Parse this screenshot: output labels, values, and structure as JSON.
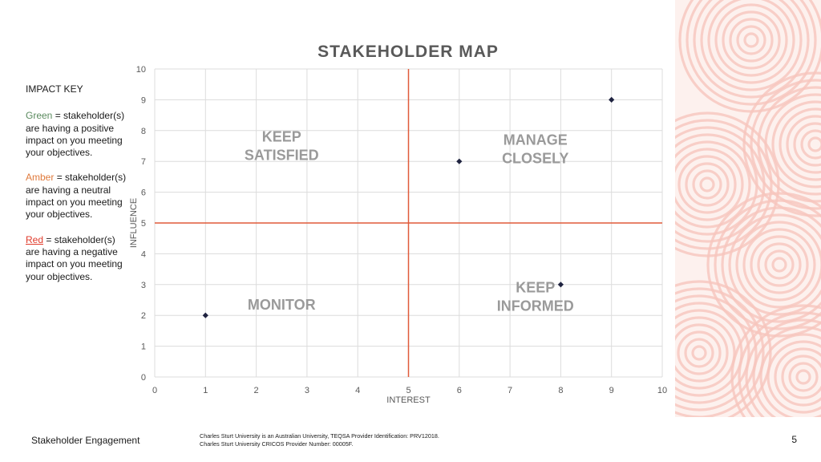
{
  "impact_key": {
    "title": "IMPACT KEY",
    "items": [
      {
        "color_word": "Green",
        "color": "#5a8a5e",
        "text": "= stakeholder(s) are having a positive impact on you meeting your objectives."
      },
      {
        "color_word": "Amber",
        "color": "#e07a3c",
        "text": "= stakeholder(s) are having a neutral impact on you meeting your objectives."
      },
      {
        "color_word": "Red",
        "color": "#e03a2a",
        "text": "= stakeholder(s) are having a negative impact on you meeting your objectives."
      }
    ]
  },
  "chart_data": {
    "type": "scatter",
    "title": "STAKEHOLDER MAP",
    "xlabel": "INTEREST",
    "ylabel": "INFLUENCE",
    "xlim": [
      0,
      10
    ],
    "ylim": [
      0,
      10
    ],
    "xticks": [
      "0",
      "1",
      "2",
      "3",
      "4",
      "5",
      "6",
      "7",
      "8",
      "9",
      "10"
    ],
    "yticks": [
      "0",
      "1",
      "2",
      "3",
      "4",
      "5",
      "6",
      "7",
      "8",
      "9",
      "10"
    ],
    "grid": true,
    "points": [
      {
        "x": 1,
        "y": 2
      },
      {
        "x": 6,
        "y": 7
      },
      {
        "x": 8,
        "y": 3
      },
      {
        "x": 9,
        "y": 9
      }
    ],
    "divider_x": 5,
    "divider_y": 5,
    "divider_color": "#e05a3a",
    "marker_color": "#1f2340",
    "quadrants": [
      {
        "lines": [
          "KEEP",
          "SATISFIED"
        ],
        "x": 2.5,
        "y": 7.5
      },
      {
        "lines": [
          "MANAGE",
          "CLOSELY"
        ],
        "x": 7.5,
        "y": 7.4
      },
      {
        "lines": [
          "MONITOR"
        ],
        "x": 2.5,
        "y": 2.35
      },
      {
        "lines": [
          "KEEP",
          "INFORMED"
        ],
        "x": 7.5,
        "y": 2.6
      }
    ]
  },
  "footer": {
    "left": "Stakeholder Engagement",
    "note_line1": "Charles Sturt University is an Australian University, TEQSA Provider Identification: PRV12018.",
    "note_line2": "Charles Sturt University CRICOS Provider Number: 00005F.",
    "page_number": "5"
  },
  "decoration": {
    "icon": "concentric-circles-pattern",
    "color": "#f6c6bd"
  }
}
